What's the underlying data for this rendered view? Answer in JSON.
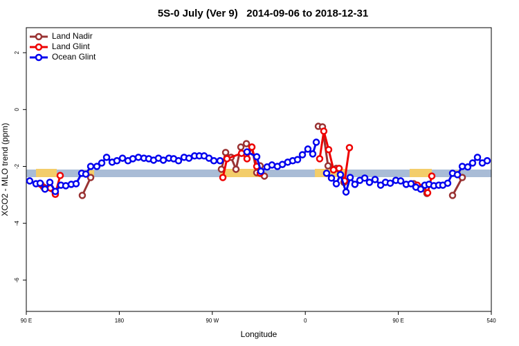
{
  "chart_data": {
    "type": "line",
    "title": "5S-0 July (Ver 9)   2014-09-06 to 2018-12-31",
    "x_label": "Longitude",
    "y_label": "XCO2 - MLO trend (ppm)",
    "xlim": [
      90,
      540
    ],
    "xticks": [
      {
        "value": 90,
        "label": "90 E"
      },
      180,
      {
        "value": 270,
        "label": "90 W"
      },
      {
        "value": 360,
        "label": "0"
      },
      {
        "value": 450,
        "label": "90 E"
      },
      540
    ],
    "ylim": [
      -7.1,
      2.88
    ],
    "yticks": [
      2,
      0,
      -2,
      -4,
      -6
    ],
    "legend": "top-left",
    "series": [
      {
        "name": "Land Nadir",
        "color": "#993333",
        "x": [
          106.7,
          118.1,
          null,
          144.2,
          152.3,
          null,
          278.8,
          282.9,
          288.2,
          292.9,
          297.6,
          303,
          308.3,
          313,
          316.3,
          320.4,
          null,
          372.6,
          376.6,
          382,
          390,
          397.4,
          null,
          465,
          477.7,
          null,
          502.5,
          511.9
        ],
        "values": [
          -2.73,
          -2.95,
          null,
          -3.02,
          -2.39,
          null,
          -2.1,
          -1.51,
          -1.68,
          -2.1,
          -1.32,
          -1.2,
          -1.32,
          -2.22,
          -1.98,
          -2.34,
          null,
          -0.59,
          -0.61,
          -1.98,
          -2.07,
          -2.56,
          null,
          -2.61,
          -2.95,
          null,
          -3.02,
          -2.39
        ]
      },
      {
        "name": "Land Glint",
        "color": "#ee0000",
        "x": [
          104.1,
          113.4,
          118.1,
          122.8,
          null,
          280.2,
          284.2,
          298.3,
          303.6,
          308.3,
          313,
          316.3,
          null,
          373.9,
          377.9,
          382.6,
          387.3,
          392.7,
          398,
          402.7,
          null,
          468.3,
          474.4,
          478.4,
          482.4
        ],
        "values": [
          -2.63,
          -2.76,
          -2.98,
          -2.32,
          null,
          -2.39,
          -1.73,
          -1.54,
          -1.73,
          -1.32,
          -2.0,
          -2.24,
          null,
          -1.73,
          -0.76,
          -1.41,
          -2.12,
          -2.07,
          -2.51,
          -1.34,
          null,
          -2.66,
          -2.71,
          -2.93,
          -2.34
        ]
      },
      {
        "name": "Ocean Glint",
        "color": "#0000ee",
        "x": [
          93.3,
          99.4,
          103.4,
          108.1,
          112.8,
          118.1,
          123.5,
          128.2,
          133.5,
          138.2,
          143.6,
          147.6,
          152.3,
          158.3,
          163,
          167.7,
          173.1,
          177.7,
          183.1,
          188.4,
          193.1,
          198.5,
          203.8,
          208.5,
          213.2,
          217.9,
          222.6,
          228,
          232.6,
          237.3,
          242.7,
          247.4,
          252.8,
          257.4,
          262.1,
          266.8,
          271.5,
          277.5,
          null,
          303.6,
          313,
          317,
          323,
          327.7,
          333,
          337.8,
          343,
          347.8,
          352.5,
          357.2,
          362.5,
          367.2,
          370.6,
          null,
          380.6,
          385.3,
          390,
          394,
          399.4,
          403.4,
          408,
          412.8,
          417.5,
          422.1,
          427.5,
          432.9,
          437.6,
          442.2,
          447.6,
          452.3,
          457.6,
          462.3,
          467,
          471.7,
          475.7,
          479.7,
          484.4,
          489.1,
          493.1,
          497.8,
          502.5,
          507.2,
          511.9,
          517.2,
          521.9,
          526.6,
          531.3,
          536
        ],
        "values": [
          -2.51,
          -2.61,
          -2.59,
          -2.8,
          -2.56,
          -2.88,
          -2.66,
          -2.68,
          -2.63,
          -2.61,
          -2.24,
          -2.27,
          -2.0,
          -2.0,
          -1.88,
          -1.68,
          -1.85,
          -1.8,
          -1.71,
          -1.8,
          -1.73,
          -1.68,
          -1.71,
          -1.73,
          -1.78,
          -1.71,
          -1.78,
          -1.71,
          -1.73,
          -1.8,
          -1.68,
          -1.71,
          -1.63,
          -1.63,
          -1.63,
          -1.71,
          -1.8,
          -1.8,
          null,
          -1.49,
          -1.66,
          -2.17,
          -2.02,
          -1.95,
          -2.0,
          -1.93,
          -1.85,
          -1.8,
          -1.76,
          -1.59,
          -1.39,
          -1.56,
          -1.15,
          null,
          -2.24,
          -2.41,
          -2.61,
          -2.29,
          -2.9,
          -2.39,
          -2.63,
          -2.49,
          -2.41,
          -2.56,
          -2.46,
          -2.66,
          -2.56,
          -2.59,
          -2.49,
          -2.51,
          -2.63,
          -2.61,
          -2.73,
          -2.8,
          -2.66,
          -2.63,
          -2.68,
          -2.66,
          -2.66,
          -2.59,
          -2.24,
          -2.29,
          -2.0,
          -2.02,
          -1.88,
          -1.68,
          -1.88,
          -1.8
        ]
      }
    ]
  }
}
